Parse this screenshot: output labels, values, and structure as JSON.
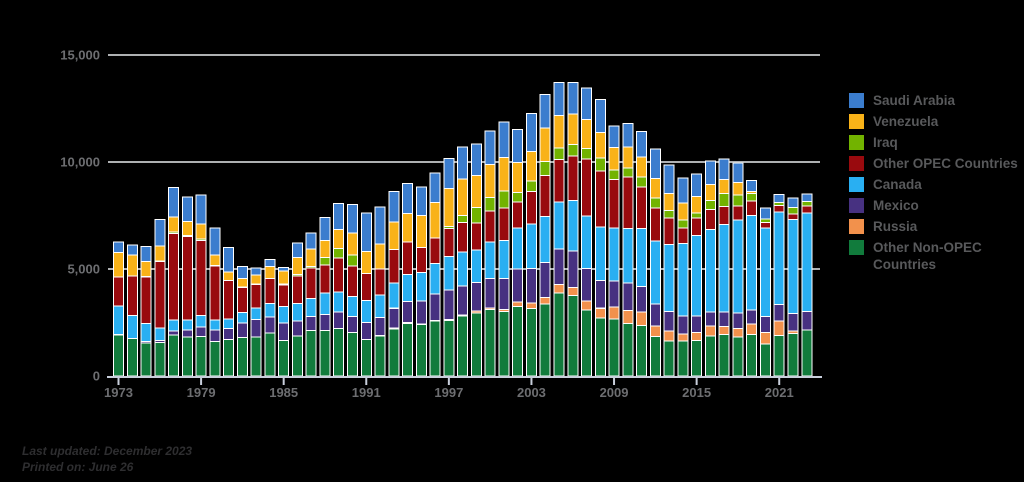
{
  "colors": {
    "background": "#000000",
    "gridline": "#AEB0B2",
    "axis_line": "#C9CFDC",
    "tick_label": "#6D6E71",
    "legend_text": "#58595B",
    "footer_text": "#2E2E30",
    "bar_outline": "#FFFFFF"
  },
  "legend": {
    "items": [
      {
        "label": "Saudi Arabia",
        "color": "#3B7DCE"
      },
      {
        "label": "Venezuela",
        "color": "#F9B218"
      },
      {
        "label": "Iraq",
        "color": "#72B300"
      },
      {
        "label": "Other OPEC Countries",
        "color": "#990A0E"
      },
      {
        "label": "Canada",
        "color": "#29AFF2"
      },
      {
        "label": "Mexico",
        "color": "#473181"
      },
      {
        "label": "Russia",
        "color": "#F2914C"
      },
      {
        "label": "Other Non-OPEC Countries",
        "color": "#117B3C"
      }
    ]
  },
  "footer": {
    "last_updated": "Last updated: December 2023",
    "printed_on": "Printed on: June 26"
  },
  "chart_data": {
    "type": "bar",
    "stacked": true,
    "title": "",
    "xlabel": "",
    "ylabel": "",
    "ylim": [
      0,
      15000
    ],
    "grid": true,
    "legend_position": "right",
    "y_ticks": [
      0,
      5000,
      10000,
      15000
    ],
    "y_tick_labels": [
      "0",
      "5,000",
      "10,000",
      "15,000"
    ],
    "x_tick_years": [
      1973,
      1979,
      1985,
      1991,
      1997,
      2003,
      2009,
      2015,
      2021
    ],
    "x_tick_labels": [
      "1973",
      "1979",
      "1985",
      "1991",
      "1997",
      "2003",
      "2009",
      "2015",
      "2021"
    ],
    "categories": [
      1973,
      1974,
      1975,
      1976,
      1977,
      1978,
      1979,
      1980,
      1981,
      1982,
      1983,
      1984,
      1985,
      1986,
      1987,
      1988,
      1989,
      1990,
      1991,
      1992,
      1993,
      1994,
      1995,
      1996,
      1997,
      1998,
      1999,
      2000,
      2001,
      2002,
      2003,
      2004,
      2005,
      2006,
      2007,
      2008,
      2009,
      2010,
      2011,
      2012,
      2013,
      2014,
      2015,
      2016,
      2017,
      2018,
      2019,
      2020,
      2021,
      2022,
      2023
    ],
    "stack_order": [
      "Other Non-OPEC Countries",
      "Russia",
      "Mexico",
      "Canada",
      "Other OPEC Countries",
      "Iraq",
      "Venezuela",
      "Saudi Arabia"
    ],
    "series": [
      {
        "name": "Saudi Arabia",
        "color": "#3B7DCE",
        "values": [
          486,
          461,
          715,
          1230,
          1380,
          1144,
          1356,
          1261,
          1129,
          552,
          337,
          325,
          168,
          685,
          751,
          1073,
          1224,
          1339,
          1802,
          1720,
          1414,
          1402,
          1344,
          1363,
          1407,
          1491,
          1478,
          1572,
          1662,
          1552,
          1774,
          1558,
          1537,
          1463,
          1485,
          1529,
          1004,
          1096,
          1195,
          1364,
          1329,
          1166,
          1056,
          1104,
          949,
          903,
          527,
          522,
          356,
          440,
          350
        ]
      },
      {
        "name": "Venezuela",
        "color": "#F9B218",
        "values": [
          1135,
          979,
          702,
          700,
          690,
          645,
          690,
          481,
          406,
          412,
          422,
          548,
          605,
          793,
          804,
          794,
          873,
          1025,
          1035,
          1170,
          1300,
          1334,
          1480,
          1676,
          1773,
          1719,
          1493,
          1546,
          1553,
          1398,
          1376,
          1554,
          1529,
          1419,
          1361,
          1189,
          1063,
          988,
          951,
          906,
          797,
          789,
          776,
          741,
          673,
          586,
          92,
          0,
          0,
          0,
          0
        ]
      },
      {
        "name": "Iraq",
        "color": "#72B300",
        "values": [
          4,
          0,
          2,
          30,
          75,
          62,
          89,
          28,
          0,
          3,
          10,
          12,
          46,
          81,
          83,
          345,
          449,
          518,
          0,
          0,
          0,
          0,
          0,
          1,
          89,
          336,
          725,
          620,
          795,
          459,
          481,
          655,
          531,
          553,
          484,
          627,
          449,
          415,
          460,
          474,
          341,
          369,
          229,
          418,
          602,
          507,
          337,
          177,
          157,
          312,
          213
        ]
      },
      {
        "name": "Other OPEC Countries",
        "color": "#990A0E",
        "values": [
          1368,
          1840,
          2182,
          3106,
          4048,
          3900,
          3502,
          2530,
          1788,
          1179,
          1093,
          1164,
          1011,
          1278,
          1422,
          1308,
          1594,
          1414,
          1255,
          1202,
          1559,
          1511,
          1178,
          1171,
          1300,
          1359,
          1257,
          1465,
          1518,
          1196,
          1531,
          1934,
          1990,
          2082,
          2650,
          2609,
          2260,
          2407,
          1933,
          1537,
          1239,
          722,
          822,
          947,
          836,
          664,
          674,
          251,
          287,
          248,
          337
        ]
      },
      {
        "name": "Canada",
        "color": "#29AFF2",
        "values": [
          1325,
          1070,
          846,
          599,
          517,
          467,
          538,
          455,
          447,
          482,
          547,
          630,
          770,
          807,
          848,
          999,
          931,
          934,
          1033,
          1069,
          1181,
          1272,
          1332,
          1424,
          1563,
          1598,
          1539,
          1703,
          1786,
          1926,
          2072,
          2138,
          2181,
          2353,
          2455,
          2493,
          2479,
          2535,
          2707,
          2956,
          3142,
          3388,
          3769,
          3848,
          4078,
          4350,
          4420,
          4125,
          4320,
          4400,
          4600
        ]
      },
      {
        "name": "Mexico",
        "color": "#473181",
        "values": [
          16,
          8,
          71,
          87,
          179,
          318,
          439,
          533,
          522,
          685,
          826,
          748,
          816,
          699,
          655,
          747,
          767,
          755,
          807,
          830,
          919,
          984,
          1068,
          1244,
          1385,
          1351,
          1324,
          1373,
          1440,
          1547,
          1623,
          1642,
          1662,
          1705,
          1532,
          1302,
          1210,
          1284,
          1206,
          1034,
          919,
          842,
          758,
          668,
          679,
          719,
          650,
          750,
          780,
          820,
          870
        ]
      },
      {
        "name": "Russia",
        "color": "#F2914C",
        "values": [
          0,
          0,
          0,
          0,
          0,
          0,
          0,
          0,
          0,
          0,
          0,
          0,
          0,
          0,
          0,
          0,
          0,
          0,
          0,
          23,
          45,
          35,
          21,
          30,
          43,
          58,
          91,
          72,
          92,
          210,
          254,
          298,
          410,
          369,
          414,
          465,
          563,
          612,
          624,
          477,
          462,
          329,
          376,
          466,
          384,
          384,
          513,
          538,
          672,
          110,
          0
        ]
      },
      {
        "name": "Other Non-OPEC Countries",
        "color": "#117B3C",
        "values": [
          1922,
          1754,
          1538,
          1561,
          1918,
          1827,
          1842,
          1621,
          1704,
          1800,
          1816,
          2010,
          1651,
          1881,
          2115,
          2136,
          2223,
          2033,
          1695,
          1874,
          2202,
          2458,
          2412,
          2569,
          2602,
          2796,
          2945,
          3108,
          3025,
          3242,
          3153,
          3366,
          3874,
          3763,
          3087,
          2701,
          2663,
          2456,
          2360,
          1850,
          1630,
          1636,
          1663,
          1863,
          1939,
          1830,
          1928,
          1499,
          1898,
          1995,
          2140
        ]
      }
    ]
  }
}
